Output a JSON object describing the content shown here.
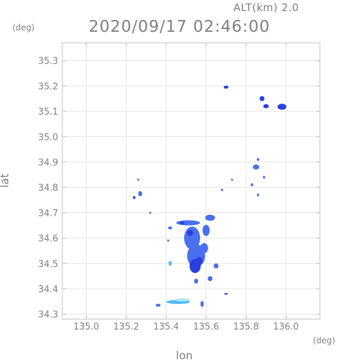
{
  "chart_data": {
    "type": "heatmap",
    "title": "2020/09/17 02:46:00",
    "subtitle": "ALT(km) 2.0",
    "xlabel": "lon",
    "ylabel": "lat",
    "x_unit": "(deg)",
    "y_unit": "(deg)",
    "xlim": [
      134.88,
      136.17
    ],
    "ylim": [
      34.28,
      35.37
    ],
    "x_ticks": [
      "135.0",
      "135.2",
      "135.4",
      "135.6",
      "135.8",
      "136.0"
    ],
    "x_tick_values": [
      135.0,
      135.2,
      135.4,
      135.6,
      135.8,
      136.0
    ],
    "y_ticks": [
      "34.3",
      "34.4",
      "34.5",
      "34.6",
      "34.7",
      "34.8",
      "34.9",
      "35.0",
      "35.1",
      "35.2",
      "35.3"
    ],
    "y_tick_values": [
      34.3,
      34.4,
      34.5,
      34.6,
      34.7,
      34.8,
      34.9,
      35.0,
      35.1,
      35.2,
      35.3
    ],
    "grid": true,
    "colors": {
      "strong": "#2a3fe0",
      "medium": "#4a6ff0",
      "light": "#55b8f5",
      "pale": "#a8e8ff",
      "frame": "#c0c0c0",
      "grid": "#e4e4e4"
    },
    "echoes": [
      {
        "lon": 135.7,
        "lat": 35.195,
        "rx": 0.012,
        "ry": 0.006,
        "level": "strong"
      },
      {
        "lon": 135.88,
        "lat": 35.15,
        "rx": 0.012,
        "ry": 0.01,
        "level": "strong"
      },
      {
        "lon": 135.9,
        "lat": 35.12,
        "rx": 0.014,
        "ry": 0.008,
        "level": "strong"
      },
      {
        "lon": 135.98,
        "lat": 35.118,
        "rx": 0.022,
        "ry": 0.012,
        "level": "strong"
      },
      {
        "lon": 135.85,
        "lat": 34.88,
        "rx": 0.016,
        "ry": 0.01,
        "level": "medium"
      },
      {
        "lon": 135.86,
        "lat": 34.91,
        "rx": 0.006,
        "ry": 0.006,
        "level": "medium"
      },
      {
        "lon": 135.83,
        "lat": 34.81,
        "rx": 0.006,
        "ry": 0.006,
        "level": "medium"
      },
      {
        "lon": 135.89,
        "lat": 34.84,
        "rx": 0.006,
        "ry": 0.005,
        "level": "medium"
      },
      {
        "lon": 135.68,
        "lat": 34.79,
        "rx": 0.005,
        "ry": 0.005,
        "level": "medium"
      },
      {
        "lon": 135.73,
        "lat": 34.83,
        "rx": 0.004,
        "ry": 0.004,
        "level": "medium"
      },
      {
        "lon": 135.27,
        "lat": 34.775,
        "rx": 0.01,
        "ry": 0.01,
        "level": "medium"
      },
      {
        "lon": 135.24,
        "lat": 34.76,
        "rx": 0.006,
        "ry": 0.006,
        "level": "strong"
      },
      {
        "lon": 135.26,
        "lat": 34.83,
        "rx": 0.004,
        "ry": 0.004,
        "level": "medium"
      },
      {
        "lon": 135.51,
        "lat": 34.66,
        "rx": 0.06,
        "ry": 0.01,
        "level": "medium"
      },
      {
        "lon": 135.62,
        "lat": 34.68,
        "rx": 0.025,
        "ry": 0.012,
        "level": "medium"
      },
      {
        "lon": 135.6,
        "lat": 34.63,
        "rx": 0.018,
        "ry": 0.022,
        "level": "medium"
      },
      {
        "lon": 135.53,
        "lat": 34.6,
        "rx": 0.04,
        "ry": 0.045,
        "level": "medium"
      },
      {
        "lon": 135.55,
        "lat": 34.53,
        "rx": 0.045,
        "ry": 0.045,
        "level": "medium"
      },
      {
        "lon": 135.545,
        "lat": 34.49,
        "rx": 0.028,
        "ry": 0.028,
        "level": "strong"
      },
      {
        "lon": 135.59,
        "lat": 34.56,
        "rx": 0.02,
        "ry": 0.02,
        "level": "medium"
      },
      {
        "lon": 135.65,
        "lat": 34.49,
        "rx": 0.012,
        "ry": 0.01,
        "level": "medium"
      },
      {
        "lon": 135.62,
        "lat": 34.44,
        "rx": 0.012,
        "ry": 0.01,
        "level": "medium"
      },
      {
        "lon": 135.55,
        "lat": 34.43,
        "rx": 0.01,
        "ry": 0.01,
        "level": "medium"
      },
      {
        "lon": 135.42,
        "lat": 34.64,
        "rx": 0.01,
        "ry": 0.006,
        "level": "medium"
      },
      {
        "lon": 135.41,
        "lat": 34.59,
        "rx": 0.004,
        "ry": 0.004,
        "level": "medium"
      },
      {
        "lon": 135.42,
        "lat": 34.5,
        "rx": 0.008,
        "ry": 0.01,
        "level": "light"
      },
      {
        "lon": 135.58,
        "lat": 34.34,
        "rx": 0.008,
        "ry": 0.012,
        "level": "medium"
      },
      {
        "lon": 135.46,
        "lat": 34.348,
        "rx": 0.06,
        "ry": 0.008,
        "level": "light"
      },
      {
        "lon": 135.48,
        "lat": 34.356,
        "rx": 0.04,
        "ry": 0.006,
        "level": "pale"
      },
      {
        "lon": 135.36,
        "lat": 34.335,
        "rx": 0.012,
        "ry": 0.006,
        "level": "medium"
      },
      {
        "lon": 135.7,
        "lat": 34.38,
        "rx": 0.01,
        "ry": 0.004,
        "level": "medium"
      },
      {
        "lon": 135.86,
        "lat": 34.77,
        "rx": 0.004,
        "ry": 0.006,
        "level": "medium"
      },
      {
        "lon": 135.32,
        "lat": 34.7,
        "rx": 0.004,
        "ry": 0.004,
        "level": "medium"
      },
      {
        "lon": 135.48,
        "lat": 34.66,
        "rx": 0.012,
        "ry": 0.006,
        "level": "strong"
      },
      {
        "lon": 135.565,
        "lat": 34.51,
        "rx": 0.018,
        "ry": 0.015,
        "level": "strong"
      },
      {
        "lon": 135.52,
        "lat": 34.62,
        "rx": 0.015,
        "ry": 0.012,
        "level": "strong"
      }
    ]
  }
}
